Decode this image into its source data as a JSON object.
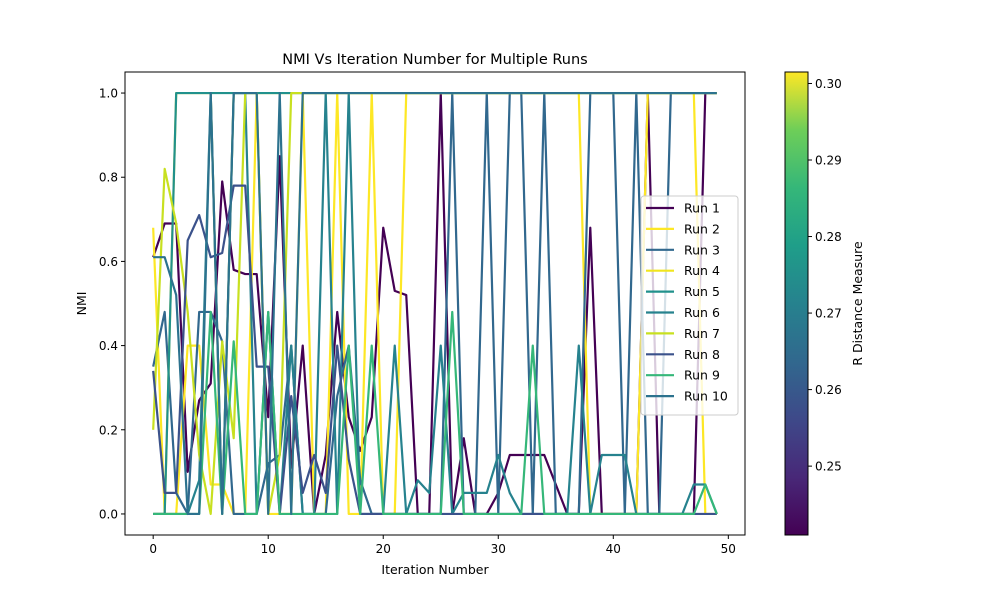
{
  "chart_data": {
    "type": "line",
    "title": "NMI Vs Iteration Number for Multiple Runs",
    "xlabel": "Iteration Number",
    "ylabel": "NMI",
    "xlim": [
      -2.45,
      51.45
    ],
    "ylim": [
      -0.05,
      1.05
    ],
    "x_ticks": [
      0,
      10,
      20,
      30,
      40,
      50
    ],
    "y_ticks": [
      0.0,
      0.2,
      0.4,
      0.6,
      0.8,
      1.0
    ],
    "grid": false,
    "legend_position": "right",
    "x": [
      0,
      1,
      2,
      3,
      4,
      5,
      6,
      7,
      8,
      9,
      10,
      11,
      12,
      13,
      14,
      15,
      16,
      17,
      18,
      19,
      20,
      21,
      22,
      23,
      24,
      25,
      26,
      27,
      28,
      29,
      30,
      31,
      32,
      33,
      34,
      35,
      36,
      37,
      38,
      39,
      40,
      41,
      42,
      43,
      44,
      45,
      46,
      47,
      48,
      49
    ],
    "colorbar": {
      "label": "R Distance Measure",
      "range": [
        0.241,
        0.3015
      ],
      "ticks": [
        0.25,
        0.26,
        0.27,
        0.28,
        0.29,
        0.3
      ],
      "colormap": "viridis"
    },
    "series": [
      {
        "name": "Run 1",
        "color": "#440154",
        "values": [
          0.61,
          0.69,
          0.69,
          0.1,
          0.27,
          0.31,
          0.79,
          0.58,
          0.57,
          0.57,
          0.23,
          0.85,
          0.11,
          0.4,
          0.0,
          0.14,
          0.48,
          0.23,
          0.15,
          0.23,
          0.68,
          0.53,
          0.52,
          0.0,
          0.0,
          1.0,
          0.0,
          0.18,
          0.0,
          0.0,
          0.05,
          0.14,
          0.14,
          0.14,
          0.14,
          0.07,
          0.0,
          0.0,
          0.68,
          0.0,
          0.0,
          0.0,
          0.0,
          1.0,
          0.0,
          0.0,
          0.0,
          0.0,
          1.0,
          1.0
        ]
      },
      {
        "name": "Run 2",
        "color": "#fde725",
        "values": [
          0.68,
          0.0,
          0.0,
          0.4,
          0.4,
          0.07,
          0.07,
          0.0,
          0.0,
          1.0,
          0.0,
          0.0,
          0.0,
          1.0,
          0.0,
          0.0,
          1.0,
          0.0,
          0.0,
          1.0,
          0.0,
          0.0,
          1.0,
          1.0,
          1.0,
          1.0,
          1.0,
          1.0,
          1.0,
          1.0,
          1.0,
          1.0,
          1.0,
          1.0,
          1.0,
          1.0,
          1.0,
          1.0,
          0.0,
          0.0,
          0.0,
          0.0,
          0.0,
          1.0,
          1.0,
          1.0,
          1.0,
          1.0,
          0.0,
          0.0
        ]
      },
      {
        "name": "Run 3",
        "color": "#31688e",
        "values": [
          0.35,
          0.48,
          0.05,
          0.0,
          0.48,
          0.48,
          0.41,
          0.0,
          0.0,
          0.0,
          0.12,
          0.14,
          0.4,
          0.0,
          0.0,
          0.0,
          0.28,
          0.4,
          0.08,
          0.0,
          0.0,
          0.0,
          0.0,
          0.0,
          0.0,
          0.0,
          1.0,
          0.0,
          0.0,
          1.0,
          0.0,
          1.0,
          1.0,
          0.0,
          1.0,
          0.0,
          0.0,
          0.0,
          1.0,
          1.0,
          1.0,
          0.0,
          1.0,
          0.0,
          0.0,
          1.0,
          1.0,
          1.0,
          1.0,
          1.0
        ]
      },
      {
        "name": "Run 4",
        "color": "#f1e51d",
        "values": [
          0.0,
          0.0,
          1.0,
          1.0,
          1.0,
          1.0,
          0.0,
          1.0,
          1.0,
          1.0,
          1.0,
          1.0,
          1.0,
          1.0,
          1.0,
          1.0,
          1.0,
          1.0,
          1.0,
          1.0,
          1.0,
          1.0,
          1.0,
          1.0,
          1.0,
          1.0,
          1.0,
          1.0,
          1.0,
          1.0,
          1.0,
          1.0,
          1.0,
          1.0,
          1.0,
          1.0,
          1.0,
          1.0,
          1.0,
          1.0,
          1.0,
          1.0,
          1.0,
          1.0,
          1.0,
          1.0,
          1.0,
          1.0,
          1.0,
          1.0
        ]
      },
      {
        "name": "Run 5",
        "color": "#21918c",
        "values": [
          0.0,
          0.0,
          1.0,
          1.0,
          1.0,
          1.0,
          1.0,
          1.0,
          1.0,
          1.0,
          1.0,
          1.0,
          1.0,
          1.0,
          1.0,
          1.0,
          1.0,
          1.0,
          1.0,
          1.0,
          1.0,
          1.0,
          1.0,
          1.0,
          1.0,
          1.0,
          1.0,
          1.0,
          1.0,
          1.0,
          1.0,
          1.0,
          1.0,
          1.0,
          1.0,
          1.0,
          1.0,
          1.0,
          1.0,
          1.0,
          1.0,
          1.0,
          1.0,
          1.0,
          1.0,
          1.0,
          1.0,
          1.0,
          1.0,
          1.0
        ]
      },
      {
        "name": "Run 6",
        "color": "#26828e",
        "values": [
          0.0,
          0.0,
          0.0,
          0.0,
          0.08,
          1.0,
          0.0,
          1.0,
          1.0,
          0.0,
          0.48,
          0.0,
          0.4,
          0.0,
          0.0,
          1.0,
          0.0,
          1.0,
          0.0,
          0.0,
          0.0,
          0.4,
          0.0,
          0.08,
          0.05,
          0.4,
          0.0,
          0.05,
          0.05,
          0.05,
          0.14,
          0.05,
          0.0,
          0.0,
          0.0,
          0.0,
          0.0,
          0.4,
          0.0,
          0.14,
          0.14,
          0.14,
          0.0,
          0.0,
          0.0,
          0.0,
          0.0,
          0.07,
          0.07,
          0.0
        ]
      },
      {
        "name": "Run 7",
        "color": "#c8e020",
        "values": [
          0.2,
          0.82,
          0.69,
          0.48,
          0.14,
          0.0,
          0.41,
          0.18,
          1.0,
          1.0,
          0.0,
          0.14,
          1.0,
          1.0,
          1.0,
          1.0,
          1.0,
          1.0,
          1.0,
          1.0,
          1.0,
          1.0,
          1.0,
          1.0,
          1.0,
          1.0,
          1.0,
          1.0,
          1.0,
          1.0,
          1.0,
          1.0,
          1.0,
          1.0,
          1.0,
          1.0,
          1.0,
          1.0,
          1.0,
          1.0,
          1.0,
          1.0,
          1.0,
          1.0,
          1.0,
          1.0,
          1.0,
          1.0,
          1.0,
          1.0
        ]
      },
      {
        "name": "Run 8",
        "color": "#3b528b",
        "values": [
          0.34,
          0.05,
          0.05,
          0.65,
          0.71,
          0.61,
          0.62,
          0.78,
          0.78,
          0.35,
          0.35,
          0.0,
          0.28,
          0.05,
          0.14,
          0.05,
          0.4,
          0.13,
          0.0,
          0.0,
          0.0,
          0.0,
          0.0,
          0.0,
          0.0,
          0.0,
          0.0,
          0.0,
          0.0,
          0.0,
          0.0,
          0.0,
          0.0,
          0.0,
          0.0,
          0.0,
          0.0,
          0.0,
          0.0,
          0.0,
          0.0,
          0.0,
          0.0,
          0.0,
          0.0,
          0.0,
          0.0,
          0.0,
          0.0,
          0.0
        ]
      },
      {
        "name": "Run 9",
        "color": "#35b779",
        "values": [
          0.0,
          0.0,
          0.0,
          0.0,
          0.0,
          0.48,
          0.0,
          0.41,
          0.0,
          0.0,
          0.48,
          0.0,
          0.0,
          0.0,
          0.0,
          0.0,
          0.0,
          0.4,
          0.0,
          0.4,
          0.0,
          0.0,
          0.0,
          0.0,
          0.0,
          0.0,
          0.48,
          0.0,
          0.0,
          0.0,
          0.0,
          0.0,
          0.0,
          0.4,
          0.0,
          0.0,
          0.0,
          0.0,
          0.0,
          0.0,
          0.0,
          0.0,
          0.0,
          0.0,
          0.0,
          0.0,
          0.0,
          0.0,
          0.07,
          0.0
        ]
      },
      {
        "name": "Run 10",
        "color": "#2c728e",
        "values": [
          0.61,
          0.61,
          0.52,
          0.0,
          0.0,
          1.0,
          0.0,
          1.0,
          1.0,
          1.0,
          0.0,
          1.0,
          0.0,
          1.0,
          1.0,
          1.0,
          1.0,
          1.0,
          1.0,
          1.0,
          1.0,
          1.0,
          1.0,
          1.0,
          1.0,
          1.0,
          1.0,
          1.0,
          1.0,
          1.0,
          1.0,
          1.0,
          1.0,
          1.0,
          1.0,
          1.0,
          1.0,
          1.0,
          1.0,
          1.0,
          1.0,
          1.0,
          1.0,
          1.0,
          1.0,
          1.0,
          1.0,
          1.0,
          1.0,
          1.0
        ]
      }
    ]
  }
}
